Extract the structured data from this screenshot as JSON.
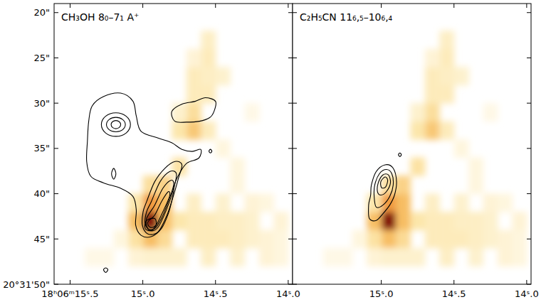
{
  "chart_data": {
    "type": "heatmap",
    "xlim": [
      15.61,
      13.97
    ],
    "ylim": [
      19,
      50
    ],
    "yticks": [
      {
        "value": 20,
        "label": "20\""
      },
      {
        "value": 25,
        "label": "25\""
      },
      {
        "value": 30,
        "label": "30\""
      },
      {
        "value": 35,
        "label": "35\""
      },
      {
        "value": 40,
        "label": "40\""
      },
      {
        "value": 45,
        "label": "45\""
      },
      {
        "value": 50,
        "label": "20°31'50\""
      }
    ],
    "image": {
      "ra_step": 0.1,
      "dec_step": 2,
      "cells": [
        [
          14.95,
          43,
          1.0
        ],
        [
          14.95,
          41,
          0.45
        ],
        [
          15.05,
          43,
          0.3
        ],
        [
          14.85,
          43,
          0.3
        ],
        [
          14.95,
          45,
          0.3
        ],
        [
          14.85,
          41,
          0.3
        ],
        [
          14.85,
          39,
          0.2
        ],
        [
          14.75,
          37,
          0.12
        ],
        [
          14.95,
          39,
          0.14
        ],
        [
          15.05,
          45,
          0.12
        ],
        [
          14.85,
          45,
          0.16
        ],
        [
          15.05,
          41,
          0.1
        ],
        [
          14.65,
          33,
          0.25
        ],
        [
          14.65,
          31,
          0.14
        ],
        [
          14.75,
          33,
          0.1
        ],
        [
          14.55,
          33,
          0.08
        ],
        [
          14.75,
          31,
          0.06
        ],
        [
          14.55,
          25,
          0.08
        ],
        [
          14.55,
          23,
          0.07
        ],
        [
          14.65,
          27,
          0.08
        ],
        [
          14.45,
          27,
          0.06
        ],
        [
          14.65,
          29,
          0.08
        ],
        [
          14.55,
          29,
          0.08
        ],
        [
          14.55,
          27,
          0.07
        ],
        [
          14.65,
          25,
          0.05
        ],
        [
          14.75,
          43,
          0.1
        ],
        [
          14.65,
          41,
          0.07
        ],
        [
          14.55,
          43,
          0.08
        ],
        [
          14.45,
          41,
          0.06
        ],
        [
          14.35,
          43,
          0.07
        ],
        [
          14.25,
          45,
          0.06
        ],
        [
          14.15,
          45,
          0.05
        ],
        [
          14.05,
          43,
          0.05
        ],
        [
          14.45,
          45,
          0.08
        ],
        [
          14.65,
          45,
          0.08
        ],
        [
          14.75,
          47,
          0.06
        ],
        [
          14.35,
          47,
          0.06
        ],
        [
          14.55,
          47,
          0.07
        ],
        [
          14.25,
          41,
          0.05
        ],
        [
          14.15,
          41,
          0.04
        ],
        [
          14.45,
          43,
          0.07
        ],
        [
          14.65,
          43,
          0.08
        ],
        [
          14.35,
          45,
          0.07
        ],
        [
          14.55,
          45,
          0.08
        ],
        [
          14.25,
          43,
          0.06
        ],
        [
          14.15,
          47,
          0.05
        ],
        [
          14.05,
          47,
          0.04
        ],
        [
          14.05,
          45,
          0.04
        ],
        [
          15.15,
          45,
          0.04
        ],
        [
          15.25,
          47,
          0.03
        ],
        [
          15.35,
          47,
          0.03
        ],
        [
          15.05,
          47,
          0.05
        ],
        [
          14.95,
          47,
          0.06
        ],
        [
          14.85,
          47,
          0.06
        ],
        [
          14.45,
          35,
          0.04
        ],
        [
          14.35,
          37,
          0.04
        ],
        [
          14.25,
          31,
          0.03
        ],
        [
          14.35,
          39,
          0.04
        ]
      ]
    },
    "panels": [
      {
        "title": "CH₃OH 8₀–7₁ A⁺",
        "tick_labels": true,
        "xticks": [
          {
            "value": 15.5,
            "label": "18ʰ06ᵐ15ˢ.5"
          },
          {
            "value": 15.0,
            "label": "15ˢ.0"
          },
          {
            "value": 14.5,
            "label": "14ˢ.5"
          },
          {
            "value": 14.0,
            "label": "14ˢ.0"
          }
        ],
        "contours": [
          [
            [
              15.348,
              30.3
            ],
            [
              15.269,
              29.26
            ],
            [
              15.152,
              28.89
            ],
            [
              15.068,
              29.78
            ],
            [
              15.045,
              31.41
            ],
            [
              15.012,
              33.11
            ],
            [
              14.895,
              33.85
            ],
            [
              14.802,
              34.37
            ],
            [
              14.731,
              35.11
            ],
            [
              14.661,
              35.33
            ],
            [
              14.601,
              35.11
            ],
            [
              14.615,
              36.07
            ],
            [
              14.694,
              36.59
            ],
            [
              14.741,
              37.56
            ],
            [
              14.778,
              38.81
            ],
            [
              14.797,
              40.52
            ],
            [
              14.825,
              42.22
            ],
            [
              14.872,
              43.85
            ],
            [
              14.942,
              44.74
            ],
            [
              15.012,
              44.59
            ],
            [
              15.049,
              43.48
            ],
            [
              15.045,
              41.78
            ],
            [
              15.068,
              40.3
            ],
            [
              15.152,
              39.41
            ],
            [
              15.269,
              38.81
            ],
            [
              15.358,
              38.07
            ],
            [
              15.386,
              36.44
            ],
            [
              15.381,
              34.22
            ],
            [
              15.372,
              32.0
            ]
          ],
          [
            [
              14.974,
              40.89
            ],
            [
              14.918,
              38.67
            ],
            [
              14.848,
              37.19
            ],
            [
              14.778,
              36.44
            ],
            [
              14.731,
              36.81
            ],
            [
              14.755,
              38.3
            ],
            [
              14.788,
              40.15
            ],
            [
              14.834,
              42.37
            ],
            [
              14.895,
              44.22
            ],
            [
              14.965,
              44.44
            ],
            [
              15.003,
              43.48
            ],
            [
              14.998,
              42.0
            ]
          ],
          [
            [
              14.942,
              40.89
            ],
            [
              14.881,
              38.67
            ],
            [
              14.816,
              37.56
            ],
            [
              14.769,
              37.78
            ],
            [
              14.788,
              39.41
            ],
            [
              14.834,
              41.63
            ],
            [
              14.895,
              43.7
            ],
            [
              14.951,
              44.07
            ],
            [
              14.984,
              43.26
            ],
            [
              14.974,
              42.0
            ]
          ],
          [
            [
              14.918,
              41.26
            ],
            [
              14.862,
              39.41
            ],
            [
              14.806,
              38.52
            ],
            [
              14.788,
              39.04
            ],
            [
              14.825,
              40.89
            ],
            [
              14.872,
              42.74
            ],
            [
              14.918,
              43.85
            ],
            [
              14.965,
              43.85
            ],
            [
              14.974,
              42.74
            ]
          ],
          [
            [
              14.918,
              42.37
            ],
            [
              14.872,
              40.89
            ],
            [
              14.825,
              39.78
            ],
            [
              14.816,
              40.3
            ],
            [
              14.862,
              42.0
            ],
            [
              14.909,
              43.48
            ],
            [
              14.951,
              43.7
            ],
            [
              14.965,
              43.11
            ]
          ],
          [
            [
              14.974,
              42.96
            ],
            [
              14.918,
              42.74
            ],
            [
              14.909,
              43.48
            ],
            [
              14.942,
              44.07
            ],
            [
              14.984,
              43.85
            ]
          ],
          [
            [
              15.085,
              32.37
            ],
            [
              15.114,
              33.29
            ],
            [
              15.185,
              33.67
            ],
            [
              15.256,
              33.29
            ],
            [
              15.285,
              32.37
            ],
            [
              15.256,
              31.45
            ],
            [
              15.185,
              31.07
            ],
            [
              15.114,
              31.45
            ]
          ],
          [
            [
              15.12,
              32.37
            ],
            [
              15.139,
              32.94
            ],
            [
              15.185,
              33.17
            ],
            [
              15.231,
              32.94
            ],
            [
              15.25,
              32.37
            ],
            [
              15.231,
              31.8
            ],
            [
              15.185,
              31.57
            ],
            [
              15.139,
              31.8
            ]
          ],
          [
            [
              15.152,
              32.37
            ],
            [
              15.162,
              32.69
            ],
            [
              15.185,
              32.82
            ],
            [
              15.208,
              32.69
            ],
            [
              15.218,
              32.37
            ],
            [
              15.208,
              32.05
            ],
            [
              15.185,
              31.92
            ],
            [
              15.162,
              32.05
            ]
          ],
          [
            [
              14.8,
              30.9
            ],
            [
              14.73,
              30.1
            ],
            [
              14.64,
              29.8
            ],
            [
              14.57,
              29.4
            ],
            [
              14.5,
              29.8
            ],
            [
              14.51,
              30.9
            ],
            [
              14.54,
              31.6
            ],
            [
              14.61,
              32.0
            ],
            [
              14.7,
              32.1
            ],
            [
              14.78,
              32.0
            ]
          ],
          [
            [
              15.185,
              37.8
            ],
            [
              15.2,
              38.4
            ],
            [
              15.215,
              37.8
            ],
            [
              15.2,
              37.2
            ]
          ],
          [
            [
              14.525,
              35.3
            ],
            [
              14.535,
              35.5
            ],
            [
              14.545,
              35.3
            ],
            [
              14.535,
              35.1
            ]
          ],
          [
            [
              15.24,
              48.4
            ],
            [
              15.255,
              48.7
            ],
            [
              15.27,
              48.4
            ],
            [
              15.255,
              48.2
            ]
          ]
        ]
      },
      {
        "title": "C₂H₅CN 11₆,₅–10₆,₄",
        "tick_labels": "x",
        "xticks": [
          {
            "value": 15.0,
            "label": "15ˢ.0"
          },
          {
            "value": 14.5,
            "label": "14ˢ.5"
          },
          {
            "value": 14.0,
            "label": "14ˢ.0"
          }
        ],
        "contours": [
          [
            [
              15.068,
              39.04
            ],
            [
              15.035,
              37.56
            ],
            [
              14.974,
              36.81
            ],
            [
              14.918,
              37.19
            ],
            [
              14.895,
              38.67
            ],
            [
              14.909,
              40.15
            ],
            [
              14.942,
              41.26
            ],
            [
              14.989,
              42.22
            ],
            [
              15.035,
              42.96
            ],
            [
              15.082,
              42.74
            ],
            [
              15.087,
              41.26
            ],
            [
              15.073,
              40.15
            ]
          ],
          [
            [
              15.045,
              39.04
            ],
            [
              15.012,
              37.78
            ],
            [
              14.965,
              37.33
            ],
            [
              14.928,
              37.78
            ],
            [
              14.918,
              39.04
            ],
            [
              14.942,
              40.3
            ],
            [
              14.989,
              41.26
            ],
            [
              15.035,
              41.48
            ],
            [
              15.049,
              40.3
            ]
          ],
          [
            [
              15.021,
              38.81
            ],
            [
              14.989,
              37.93
            ],
            [
              14.951,
              37.93
            ],
            [
              14.937,
              38.81
            ],
            [
              14.965,
              39.78
            ],
            [
              15.003,
              40.15
            ],
            [
              15.026,
              39.78
            ]
          ],
          [
            [
              15.003,
              38.67
            ],
            [
              14.974,
              38.15
            ],
            [
              14.956,
              38.52
            ],
            [
              14.97,
              39.26
            ],
            [
              14.998,
              39.33
            ]
          ],
          [
            [
              14.862,
              35.7
            ],
            [
              14.872,
              35.9
            ],
            [
              14.882,
              35.7
            ],
            [
              14.872,
              35.5
            ]
          ]
        ]
      }
    ]
  }
}
